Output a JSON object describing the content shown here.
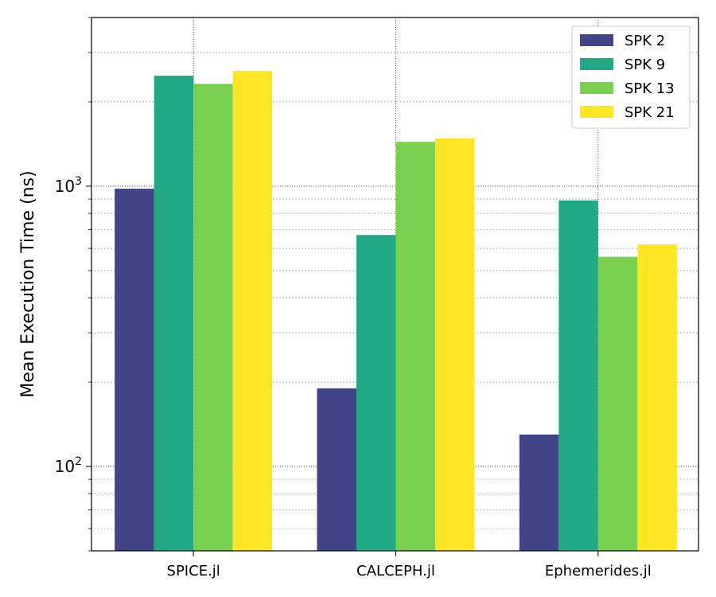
{
  "chart_data": {
    "type": "bar",
    "title": "",
    "xlabel": "",
    "ylabel": "Mean Execution Time (ns)",
    "yscale": "log",
    "ylim": [
      50,
      4000
    ],
    "ytick_labels": [
      {
        "base": "10",
        "exp": "2",
        "value": 100
      },
      {
        "base": "10",
        "exp": "3",
        "value": 1000
      }
    ],
    "categories": [
      "SPICE.jl",
      "CALCEPH.jl",
      "Ephemerides.jl"
    ],
    "series": [
      {
        "name": "SPK 2",
        "color": "#414487",
        "values": [
          980,
          190,
          130
        ]
      },
      {
        "name": "SPK 9",
        "color": "#22a884",
        "values": [
          2480,
          670,
          890
        ]
      },
      {
        "name": "SPK 13",
        "color": "#7ad151",
        "values": [
          2320,
          1440,
          560
        ]
      },
      {
        "name": "SPK 21",
        "color": "#fde725",
        "values": [
          2580,
          1480,
          620
        ]
      }
    ],
    "grid": true,
    "legend_position": "top-right"
  }
}
